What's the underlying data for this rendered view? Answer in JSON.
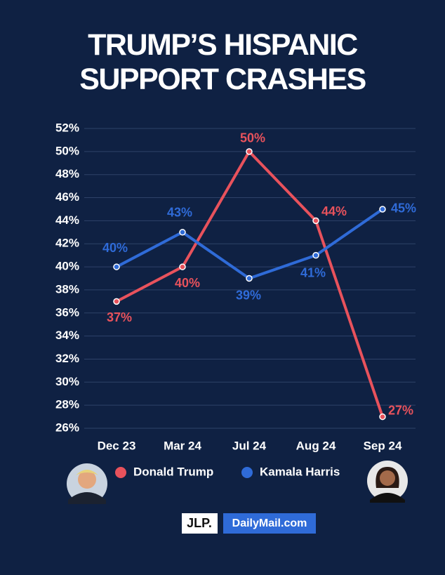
{
  "chart_data": {
    "type": "line",
    "title": "TRUMP’S HISPANIC SUPPORT CRASHES",
    "categories": [
      "Dec 23",
      "Mar 24",
      "Jul 24",
      "Aug 24",
      "Sep 24"
    ],
    "series": [
      {
        "name": "Donald Trump",
        "color": "#e8525c",
        "values": [
          37,
          40,
          50,
          44,
          27
        ],
        "value_labels": [
          "37%",
          "40%",
          "50%",
          "44%",
          "27%"
        ]
      },
      {
        "name": "Kamala Harris",
        "color": "#2f6bd8",
        "values": [
          40,
          43,
          39,
          41,
          45
        ],
        "value_labels": [
          "40%",
          "43%",
          "39%",
          "41%",
          "45%"
        ]
      }
    ],
    "ylim": [
      26,
      52
    ],
    "yticks": [
      {
        "value": 26,
        "label": "26%"
      },
      {
        "value": 28,
        "label": "28%"
      },
      {
        "value": 30,
        "label": "30%"
      },
      {
        "value": 32,
        "label": "32%"
      },
      {
        "value": 34,
        "label": "34%"
      },
      {
        "value": 36,
        "label": "36%"
      },
      {
        "value": 38,
        "label": "38%"
      },
      {
        "value": 40,
        "label": "40%"
      },
      {
        "value": 42,
        "label": "42%"
      },
      {
        "value": 44,
        "label": "44%"
      },
      {
        "value": 46,
        "label": "46%"
      },
      {
        "value": 48,
        "label": "48%"
      },
      {
        "value": 50,
        "label": "50%"
      },
      {
        "value": 52,
        "label": "52%"
      }
    ],
    "grid": true,
    "sources": [
      "JLP.",
      "DailyMail.com"
    ]
  }
}
